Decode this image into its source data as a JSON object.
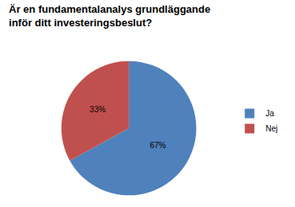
{
  "chart_data": {
    "type": "pie",
    "title": "Är en fundamentalanalys grundläggande inför ditt investeringsbeslut?",
    "categories": [
      "Ja",
      "Nej"
    ],
    "values": [
      67,
      33
    ],
    "value_labels": [
      "67%",
      "33%"
    ],
    "colors": [
      "#4f81bd",
      "#c0504d"
    ],
    "data_labels": true,
    "legend": "right"
  }
}
